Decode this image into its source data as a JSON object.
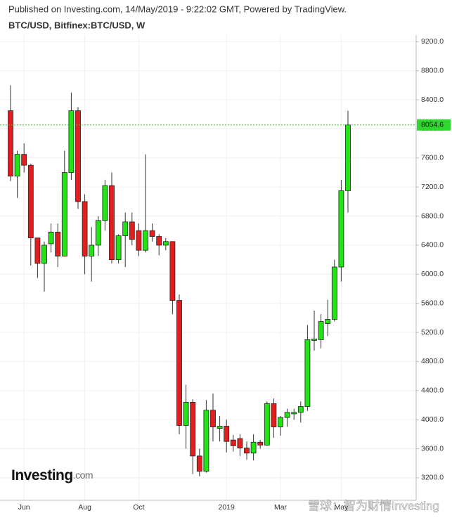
{
  "header": {
    "published": "Published on Investing.com, 14/May/2019 - 9:22:02 GMT, Powered by TradingView.",
    "symbol": "BTC/USD, Bitfinex:BTC/USD, W"
  },
  "logo": {
    "brand": "Investing",
    "suffix": ".com"
  },
  "watermark": "雪球：智为财情Investing",
  "chart_data": {
    "type": "candlestick",
    "categories": [
      null,
      null,
      "Jun",
      null,
      null,
      null,
      null,
      null,
      null,
      null,
      null,
      "Aug",
      null,
      null,
      null,
      null,
      null,
      null,
      null,
      "Oct",
      null,
      null,
      null,
      null,
      null,
      null,
      null,
      null,
      null,
      null,
      null,
      null,
      "2019",
      null,
      null,
      null,
      null,
      null,
      null,
      null,
      "Mar",
      null,
      null,
      null,
      null,
      null,
      null,
      null,
      null,
      "May",
      null
    ],
    "open": [
      8250,
      7350,
      7650,
      7500,
      6500,
      6150,
      6420,
      6580,
      6250,
      7400,
      8250,
      7000,
      6250,
      6400,
      6740,
      7220,
      6200,
      6530,
      6720,
      6600,
      6330,
      6600,
      6520,
      6400,
      6450,
      5640,
      3920,
      4240,
      3500,
      3290,
      4130,
      3880,
      3910,
      3720,
      3740,
      3610,
      3540,
      3690,
      3650,
      4220,
      3900,
      4030,
      4080,
      4100,
      4180,
      5090,
      5100,
      5320,
      5380,
      6100,
      7150
    ],
    "high": [
      8600,
      7700,
      7800,
      7520,
      6500,
      6450,
      6700,
      6700,
      7700,
      8500,
      8300,
      7100,
      6650,
      6800,
      7300,
      7400,
      6550,
      6850,
      6850,
      6700,
      7650,
      6700,
      6550,
      6500,
      6450,
      5720,
      4480,
      4280,
      3600,
      4270,
      4360,
      4050,
      4000,
      3790,
      3800,
      3700,
      3800,
      3720,
      4250,
      4290,
      4050,
      4150,
      4150,
      4250,
      5300,
      5500,
      5450,
      5650,
      6200,
      7300,
      8250
    ],
    "low": [
      7280,
      7050,
      7400,
      6120,
      5950,
      5760,
      6300,
      6100,
      6250,
      7300,
      6900,
      6000,
      5900,
      6250,
      6600,
      6150,
      6150,
      6100,
      6400,
      6250,
      6300,
      6450,
      6260,
      6330,
      5450,
      3800,
      3600,
      3250,
      3220,
      3270,
      3700,
      3700,
      3550,
      3560,
      3500,
      3450,
      3440,
      3600,
      3640,
      3750,
      3780,
      3900,
      4000,
      3960,
      4120,
      4950,
      4980,
      5150,
      5350,
      5900,
      6850
    ],
    "close": [
      7350,
      7650,
      7500,
      6500,
      6150,
      6400,
      6580,
      6250,
      7400,
      8250,
      7000,
      6250,
      6400,
      6740,
      7220,
      6200,
      6530,
      6720,
      6480,
      6330,
      6600,
      6520,
      6400,
      6450,
      5640,
      3920,
      4240,
      3500,
      3290,
      4130,
      3900,
      3910,
      3700,
      3640,
      3610,
      3540,
      3690,
      3650,
      4220,
      3900,
      4030,
      4100,
      4100,
      4180,
      5100,
      5110,
      5350,
      5380,
      6100,
      7150,
      8054.6
    ],
    "up_color": "#23e314",
    "down_color": "#e41e1e",
    "last_price": 8054.6,
    "last_price_color": "#2ed62e",
    "ylim": [
      2890,
      9290
    ],
    "yticks": [
      {
        "value": 3200,
        "label": "3200.0"
      },
      {
        "value": 3600,
        "label": "3600.0"
      },
      {
        "value": 4000,
        "label": "4000.0"
      },
      {
        "value": 4400,
        "label": "4400.0"
      },
      {
        "value": 4800,
        "label": "4800.0"
      },
      {
        "value": 5200,
        "label": "5200.0"
      },
      {
        "value": 5600,
        "label": "5600.0"
      },
      {
        "value": 6000,
        "label": "6000.0"
      },
      {
        "value": 6400,
        "label": "6400.0"
      },
      {
        "value": 6800,
        "label": "6800.0"
      },
      {
        "value": 7200,
        "label": "7200.0"
      },
      {
        "value": 7600,
        "label": "7600.0"
      },
      {
        "value": 8000,
        "label": "8000.0"
      },
      {
        "value": 8400,
        "label": "8400.0"
      },
      {
        "value": 8800,
        "label": "8800.0"
      },
      {
        "value": 9200,
        "label": "9200.0"
      }
    ],
    "grid": true
  }
}
